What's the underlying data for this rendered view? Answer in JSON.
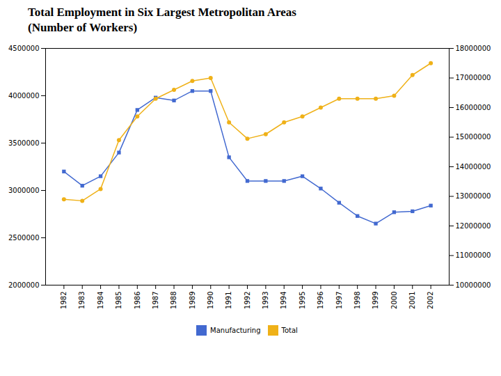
{
  "chart_data": {
    "type": "line",
    "title": "Total Employment in Six Largest Metropolitan Areas",
    "subtitle": "(Number of Workers)",
    "x": [
      1982,
      1983,
      1984,
      1985,
      1986,
      1987,
      1988,
      1989,
      1990,
      1991,
      1992,
      1993,
      1994,
      1995,
      1996,
      1997,
      1998,
      1999,
      2000,
      2001,
      2002
    ],
    "series": [
      {
        "name": "Manufacturing",
        "marker": "square",
        "values": [
          3200000,
          3050000,
          3150000,
          3400000,
          3850000,
          3980000,
          3950000,
          4050000,
          4050000,
          3350000,
          3100000,
          3100000,
          3100000,
          3150000,
          3020000,
          2870000,
          2730000,
          2650000,
          2770000,
          2780000,
          2840000
        ]
      },
      {
        "name": "Total",
        "marker": "circle",
        "axis": "y2",
        "values": [
          12900000,
          12850000,
          13250000,
          14900000,
          15700000,
          16300000,
          16600000,
          16900000,
          17000000,
          15500000,
          14950000,
          15100000,
          15500000,
          15700000,
          16000000,
          16300000,
          16300000,
          16300000,
          16400000,
          17100000,
          17500000
        ]
      }
    ],
    "xlim": [
      1981,
      2003
    ],
    "xticks": [
      1982,
      1983,
      1984,
      1985,
      1986,
      1987,
      1988,
      1989,
      1990,
      1991,
      1992,
      1993,
      1994,
      1995,
      1996,
      1997,
      1998,
      1999,
      2000,
      2001,
      2002
    ],
    "ylim": [
      2000000,
      4500000
    ],
    "yticks": [
      2000000,
      2500000,
      3000000,
      3500000,
      4000000,
      4500000
    ],
    "y2lim": [
      10000000,
      18000000
    ],
    "y2ticks": [
      10000000,
      11000000,
      12000000,
      13000000,
      14000000,
      15000000,
      16000000,
      17000000,
      18000000
    ],
    "grid": false,
    "legend": "bottom"
  }
}
